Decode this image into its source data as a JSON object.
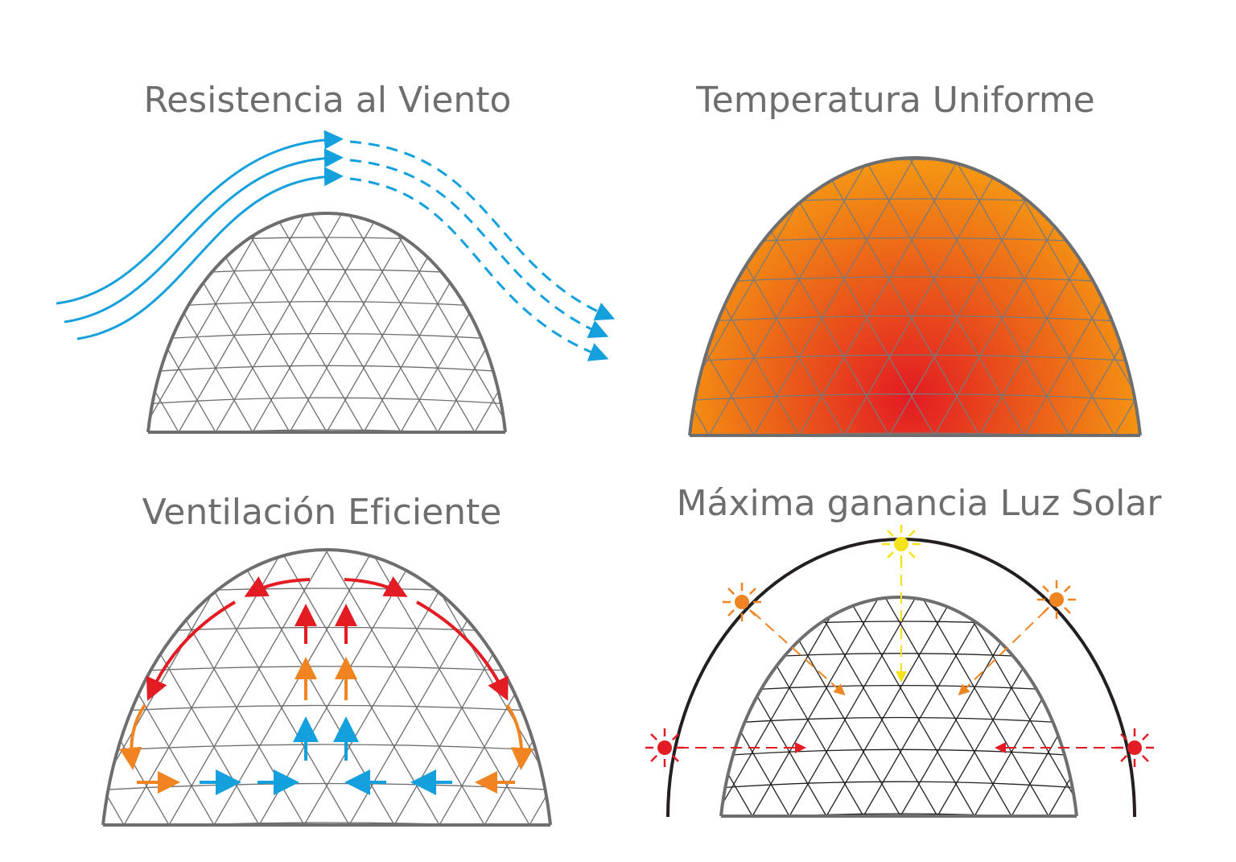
{
  "panels": [
    {
      "title": "Resistencia al Viento"
    },
    {
      "title": "Temperatura Uniforme"
    },
    {
      "title": "Ventilación Eficiente"
    },
    {
      "title": "Máxima ganancia Luz Solar"
    }
  ]
}
